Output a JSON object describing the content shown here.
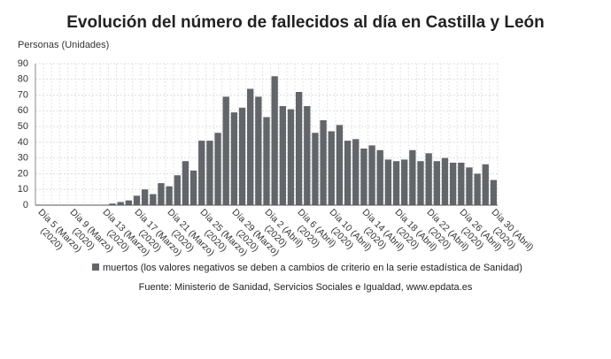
{
  "chart_data": {
    "type": "bar",
    "title": "Evolución del número de fallecidos al día en Castilla y León",
    "y_label": "Personas (Unidades)",
    "source": "Fuente: Ministerio de Sanidad, Servicios Sociales e Igualdad, www.epdata.es",
    "categories": [
      "Día 5 (Marzo)\n(2020)",
      null,
      null,
      null,
      "Día 9 (Marzo)\n(2020)",
      null,
      null,
      null,
      "Día 13 (Marzo)\n(2020)",
      null,
      null,
      null,
      "Día 17 (Marzo)\n(2020)",
      null,
      null,
      null,
      "Día 21 (Marzo)\n(2020)",
      null,
      null,
      null,
      "Día 25 (Marzo)\n(2020)",
      null,
      null,
      null,
      "Día 29 (Marzo)\n(2020)",
      null,
      null,
      null,
      "Día 2 (Abril)\n(2020)",
      null,
      null,
      null,
      "Día 6 (Abril)\n(2020)",
      null,
      null,
      null,
      "Día 10 (Abril)\n(2020)",
      null,
      null,
      null,
      "Día 14 (Abril)\n(2020)",
      null,
      null,
      null,
      "Día 18 (Abril)\n(2020)",
      null,
      null,
      null,
      "Día 22 (Abril)\n(2020)",
      null,
      null,
      null,
      "Día 26 (Abril)\n(2020)",
      null,
      null,
      null,
      "Día 30 (Abril)\n(2020)"
    ],
    "series": [
      {
        "name": "muertos (los valores negativos se deben a cambios de criterio en la serie estadística de Sanidad)",
        "color": "#62666b",
        "values": [
          0,
          0,
          0,
          0,
          0,
          0,
          0,
          0,
          0,
          1,
          2,
          3,
          6,
          10,
          7,
          14,
          12,
          19,
          28,
          22,
          41,
          41,
          46,
          69,
          59,
          62,
          74,
          69,
          56,
          82,
          63,
          61,
          72,
          63,
          46,
          54,
          47,
          51,
          41,
          42,
          36,
          38,
          35,
          29,
          28,
          29,
          35,
          28,
          33,
          28,
          30,
          27,
          27,
          24,
          20,
          26,
          16
        ]
      }
    ],
    "ylim": [
      0,
      90
    ],
    "yticks": [
      0,
      10,
      20,
      30,
      40,
      50,
      60,
      70,
      80,
      90
    ],
    "grid": true
  }
}
